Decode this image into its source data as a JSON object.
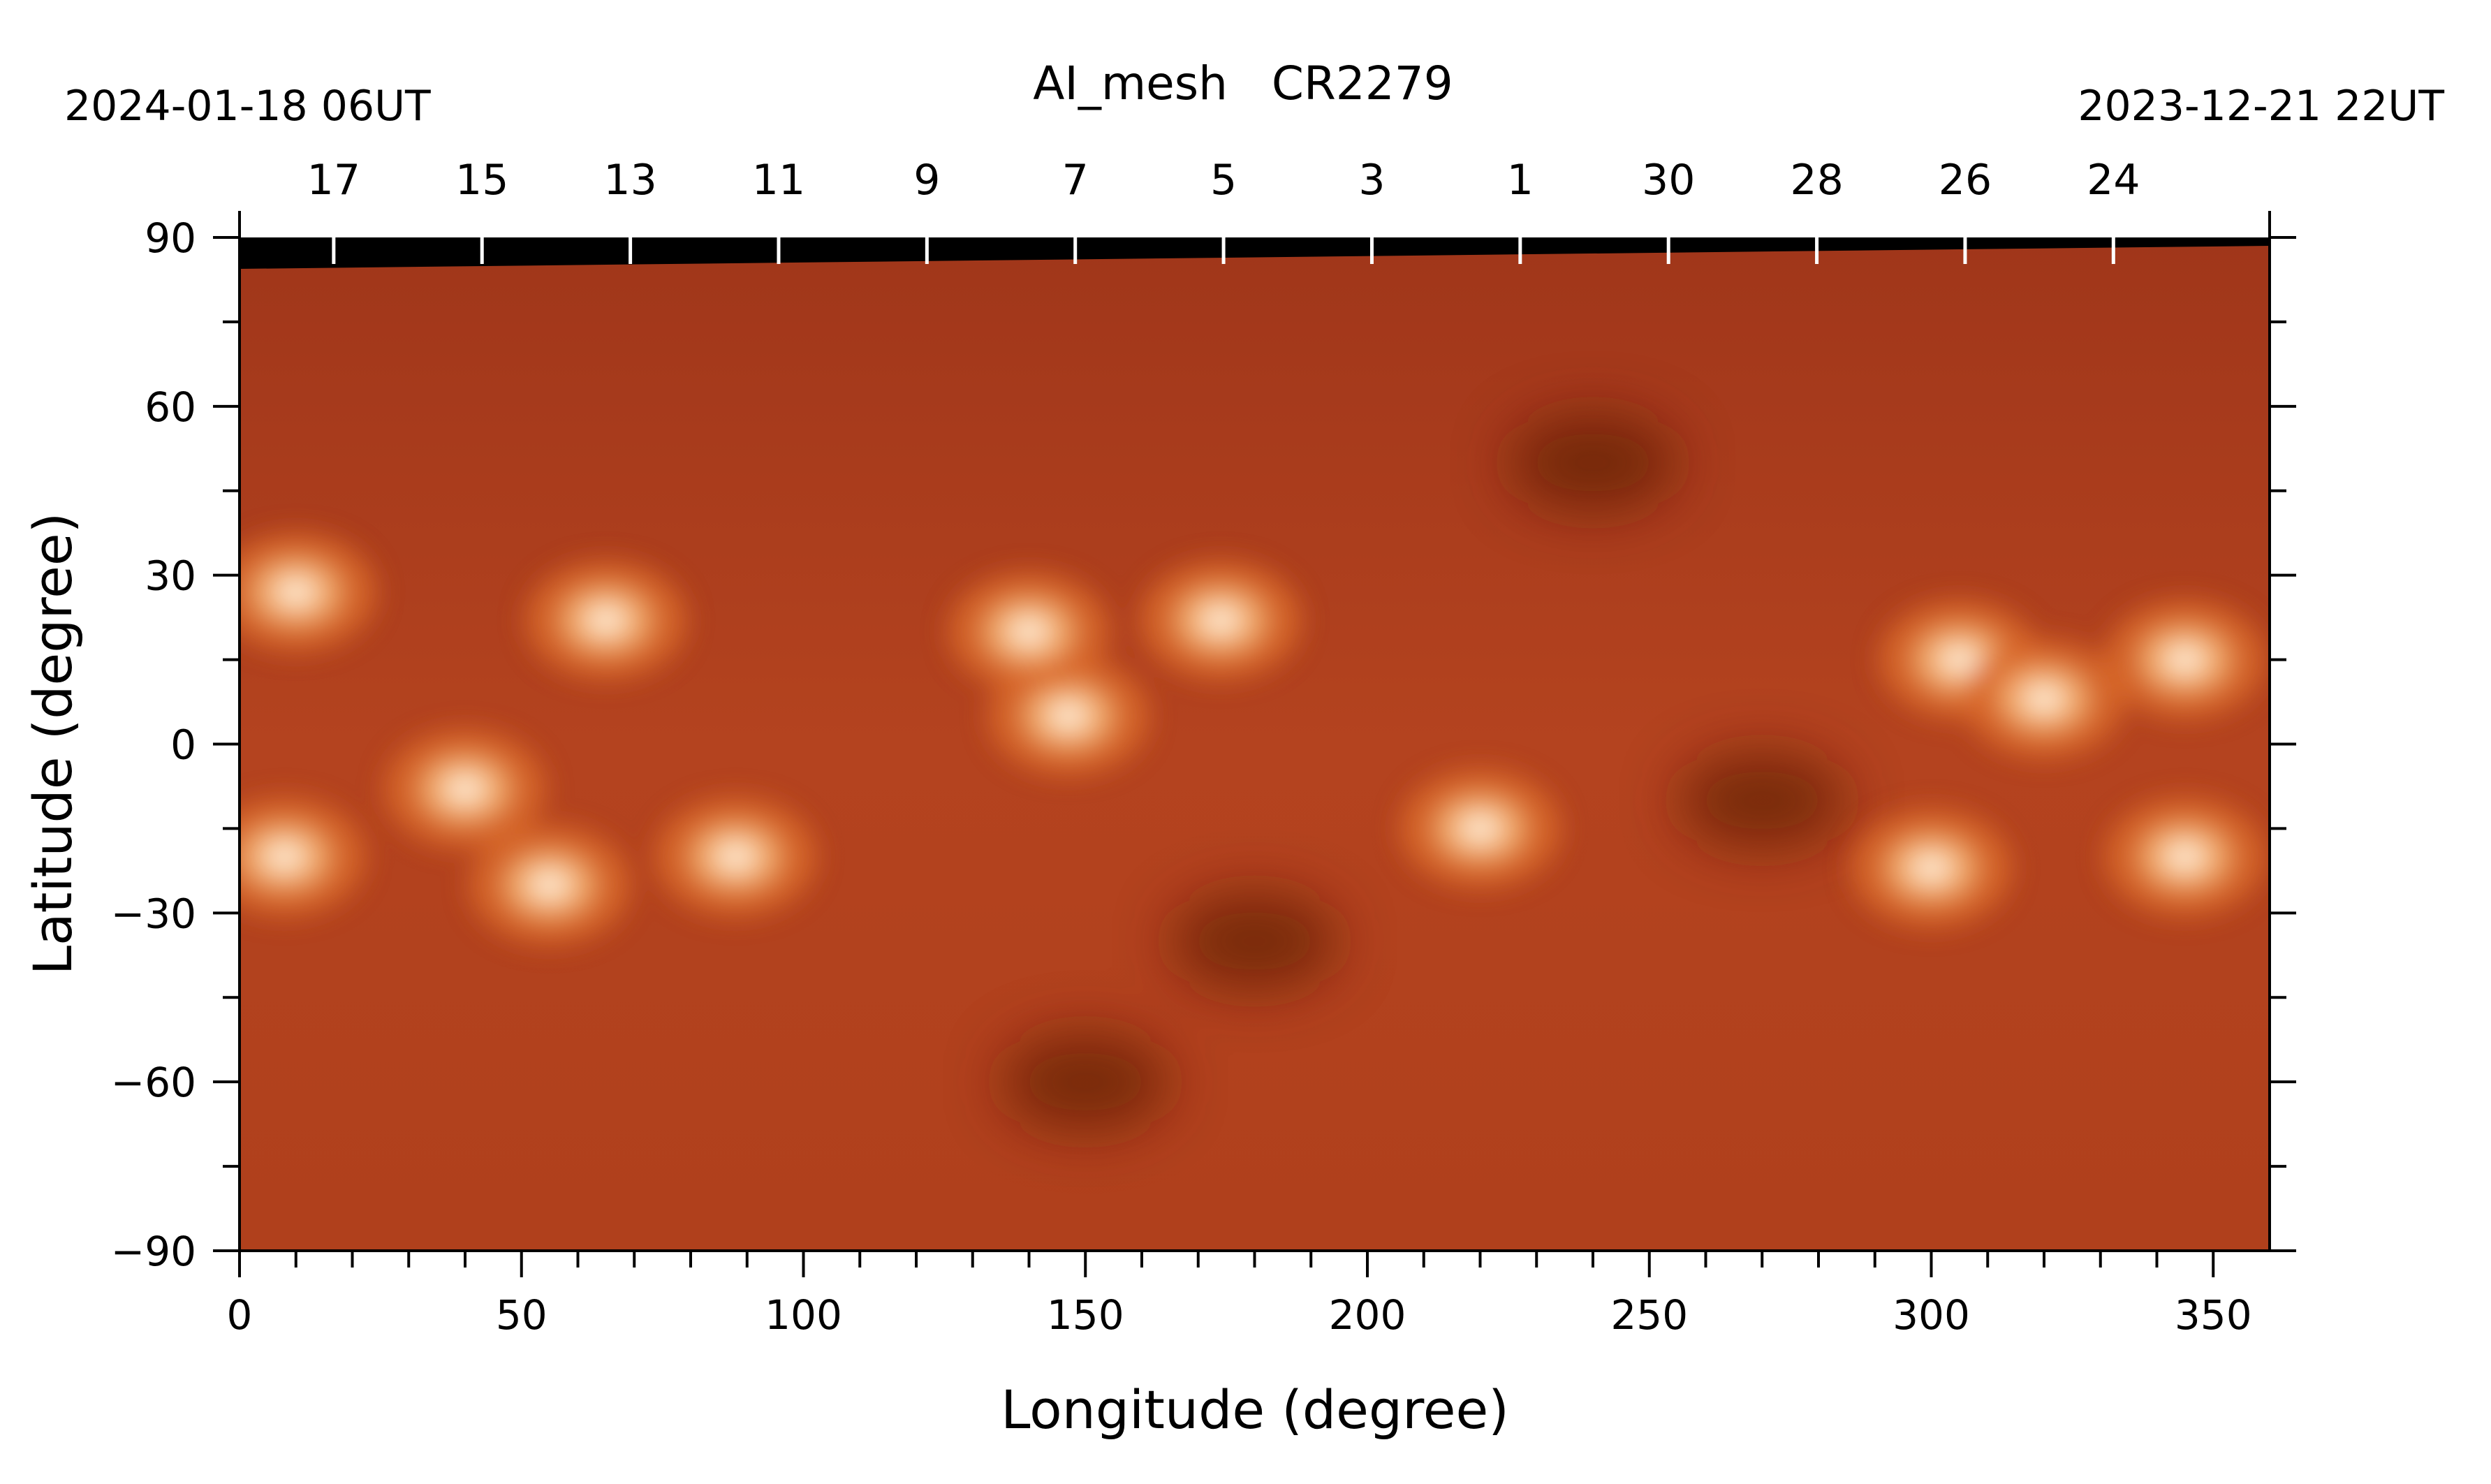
{
  "chart_data": {
    "type": "heatmap",
    "title": "AI_mesh   CR2279",
    "start_date": "2024-01-18 06UT",
    "end_date": "2023-12-21 22UT",
    "xlabel": "Longitude (degree)",
    "ylabel": "Latitude (degree)",
    "xlim": [
      0,
      360
    ],
    "ylim": [
      -90,
      90
    ],
    "x_ticks": [
      0,
      50,
      100,
      150,
      200,
      250,
      300,
      350
    ],
    "y_ticks": [
      90,
      60,
      30,
      0,
      -30,
      -60,
      -90
    ],
    "y_tick_labels": [
      "90",
      "60",
      "30",
      "0",
      "−30",
      "−60",
      "−90"
    ],
    "top_axis": {
      "label_type": "day of month",
      "days": [
        "17",
        "15",
        "13",
        "11",
        "9",
        "7",
        "5",
        "3",
        "1",
        "30",
        "28",
        "26",
        "24"
      ],
      "longitudes": [
        16.7,
        43,
        69.3,
        95.6,
        121.9,
        148.2,
        174.5,
        200.8,
        227.1,
        253.4,
        279.7,
        306,
        332.3
      ]
    },
    "colormap": [
      "#000000",
      "#5a1a05",
      "#a8391a",
      "#d96a2a",
      "#f5b070",
      "#ffffff"
    ],
    "bright_regions": [
      {
        "lon": 10,
        "lat": 27
      },
      {
        "lon": 65,
        "lat": 22
      },
      {
        "lon": 88,
        "lat": -20
      },
      {
        "lon": 147,
        "lat": 5
      },
      {
        "lon": 140,
        "lat": 20
      },
      {
        "lon": 174,
        "lat": 22
      },
      {
        "lon": 220,
        "lat": -15
      },
      {
        "lon": 300,
        "lat": -22
      },
      {
        "lon": 345,
        "lat": 15
      },
      {
        "lon": 345,
        "lat": -20
      },
      {
        "lon": 40,
        "lat": -8
      },
      {
        "lon": 55,
        "lat": -25
      },
      {
        "lon": 8,
        "lat": -20
      },
      {
        "lon": 305,
        "lat": 15
      },
      {
        "lon": 320,
        "lat": 8
      }
    ],
    "dark_regions": [
      {
        "lon": 240,
        "lat": 50
      },
      {
        "lon": 270,
        "lat": -10
      },
      {
        "lon": 150,
        "lat": -60
      },
      {
        "lon": 180,
        "lat": -35
      }
    ]
  }
}
